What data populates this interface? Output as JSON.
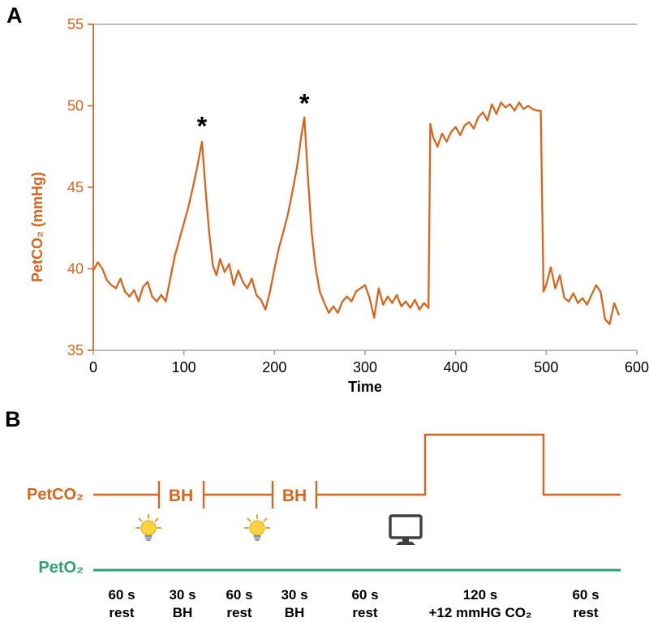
{
  "colors": {
    "orange": "#D9641C",
    "green": "#2EA36E",
    "frame_gray": "#A6A6A6",
    "bulb_yellow": "#FFD23E",
    "monitor_gray": "#404040"
  },
  "panelA": {
    "label": "A",
    "chart_data": {
      "type": "line",
      "title": "",
      "xlabel": "Time",
      "ylabel": "PetCO₂ (mmHg)",
      "xlim": [
        0,
        600
      ],
      "ylim": [
        35,
        55
      ],
      "xticks": [
        0,
        100,
        200,
        300,
        400,
        500,
        600
      ],
      "yticks": [
        35,
        40,
        45,
        50,
        55
      ],
      "grid": false,
      "legend_position": "none",
      "series": [
        {
          "name": "PetCO2 (mmHg)",
          "color": "#D9641C",
          "x": [
            0,
            5,
            10,
            15,
            20,
            25,
            30,
            35,
            40,
            45,
            50,
            55,
            60,
            65,
            70,
            75,
            80,
            85,
            90,
            95,
            100,
            105,
            110,
            115,
            120,
            124,
            128,
            132,
            136,
            140,
            145,
            150,
            155,
            160,
            165,
            170,
            175,
            180,
            185,
            190,
            195,
            200,
            205,
            210,
            215,
            220,
            225,
            230,
            233,
            237,
            241,
            245,
            250,
            255,
            260,
            265,
            270,
            275,
            280,
            285,
            290,
            295,
            300,
            305,
            310,
            315,
            320,
            325,
            330,
            335,
            340,
            345,
            350,
            355,
            360,
            365,
            370,
            372,
            375,
            380,
            385,
            390,
            395,
            400,
            405,
            410,
            415,
            420,
            425,
            430,
            435,
            440,
            445,
            450,
            455,
            460,
            465,
            470,
            475,
            480,
            485,
            490,
            494,
            497,
            500,
            505,
            510,
            515,
            520,
            525,
            530,
            535,
            540,
            545,
            550,
            555,
            560,
            565,
            570,
            575,
            580
          ],
          "y": [
            39.9,
            40.4,
            40.0,
            39.3,
            39.0,
            38.8,
            39.4,
            38.6,
            38.3,
            38.7,
            38.0,
            38.9,
            39.2,
            38.3,
            38.0,
            38.4,
            38.0,
            39.4,
            40.8,
            41.8,
            42.8,
            43.8,
            45.0,
            46.3,
            47.8,
            44.8,
            42.2,
            40.2,
            39.6,
            40.6,
            39.8,
            40.3,
            39.0,
            39.9,
            39.2,
            38.8,
            39.4,
            38.4,
            38.1,
            37.5,
            38.6,
            40.0,
            41.3,
            42.3,
            43.4,
            44.8,
            46.3,
            48.3,
            49.3,
            45.5,
            42.3,
            40.2,
            38.6,
            37.9,
            37.3,
            37.7,
            37.3,
            38.0,
            38.3,
            38.0,
            38.6,
            38.8,
            39.0,
            38.2,
            37.0,
            38.8,
            37.8,
            38.3,
            37.9,
            38.4,
            37.7,
            38.0,
            37.6,
            38.1,
            37.5,
            37.9,
            37.6,
            48.9,
            48.1,
            47.5,
            48.3,
            47.8,
            48.4,
            48.7,
            48.2,
            48.8,
            49.0,
            48.6,
            49.3,
            49.6,
            49.1,
            50.1,
            49.5,
            50.2,
            49.9,
            50.1,
            49.7,
            50.2,
            49.8,
            50.0,
            49.8,
            49.7,
            49.7,
            38.6,
            39.0,
            40.1,
            38.8,
            39.6,
            38.2,
            38.0,
            38.5,
            37.9,
            38.2,
            37.8,
            38.4,
            39.0,
            38.6,
            36.9,
            36.6,
            37.9,
            37.2
          ]
        }
      ],
      "annotations": [
        {
          "text": "*",
          "x": 120,
          "y": 48.9
        },
        {
          "text": "*",
          "x": 233,
          "y": 50.3
        }
      ]
    }
  },
  "panelB": {
    "label": "B",
    "rows": [
      {
        "label": "PetCO₂",
        "color": "#D9641C"
      },
      {
        "label": "PetO₂",
        "color": "#2EA36E"
      }
    ],
    "bh_label": "BH",
    "icons": [
      "lightbulb",
      "lightbulb",
      "computer-monitor"
    ],
    "segments": [
      {
        "duration": "60 s",
        "condition": "rest"
      },
      {
        "duration": "30 s",
        "condition": "BH"
      },
      {
        "duration": "60 s",
        "condition": "rest"
      },
      {
        "duration": "30 s",
        "condition": "BH"
      },
      {
        "duration": "60 s",
        "condition": "rest"
      },
      {
        "duration": "120 s",
        "condition": "+12 mmHG CO₂"
      },
      {
        "duration": "60 s",
        "condition": "rest"
      }
    ]
  }
}
